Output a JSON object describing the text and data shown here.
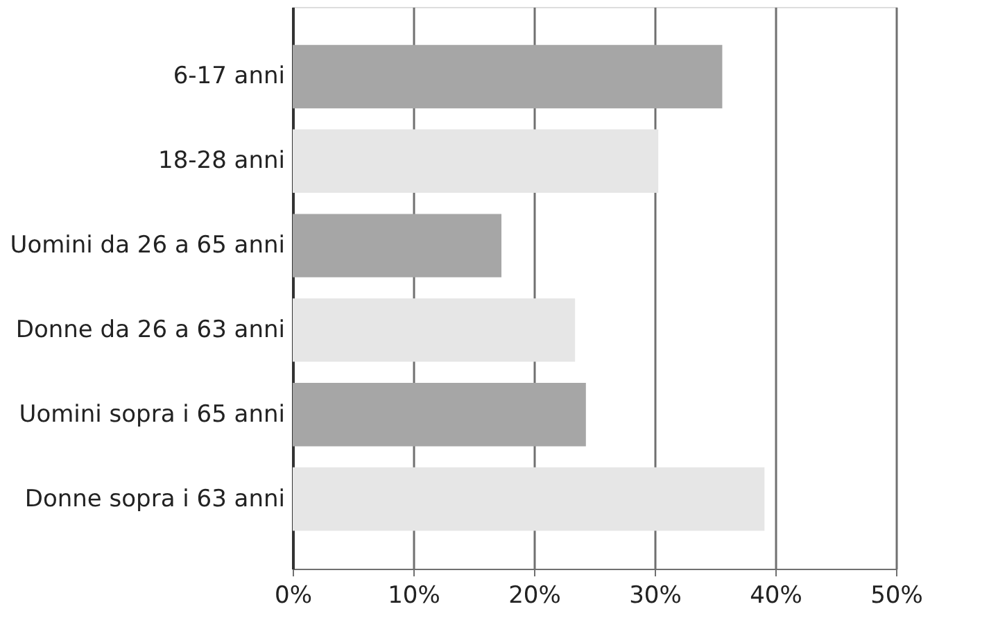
{
  "chart_data": {
    "type": "bar",
    "orientation": "horizontal",
    "categories": [
      "6-17 anni",
      "18-28 anni",
      "Uomini da 26 a 65 anni",
      "Donne  da 26 a 63 anni",
      "Uomini sopra i 65 anni",
      "Donne sopra i 63 anni"
    ],
    "values": [
      35.6,
      30.3,
      17.3,
      23.4,
      24.3,
      39.1
    ],
    "colors": [
      "#a6a6a6",
      "#e6e6e6",
      "#a6a6a6",
      "#e6e6e6",
      "#a6a6a6",
      "#e6e6e6"
    ],
    "xlim": [
      0,
      50
    ],
    "xticks": [
      {
        "value": 0,
        "label": "0%"
      },
      {
        "value": 10,
        "label": "10%"
      },
      {
        "value": 20,
        "label": "20%"
      },
      {
        "value": 30,
        "label": "30%"
      },
      {
        "value": 40,
        "label": "40%"
      },
      {
        "value": 50,
        "label": "50%"
      }
    ],
    "grid": "x"
  }
}
